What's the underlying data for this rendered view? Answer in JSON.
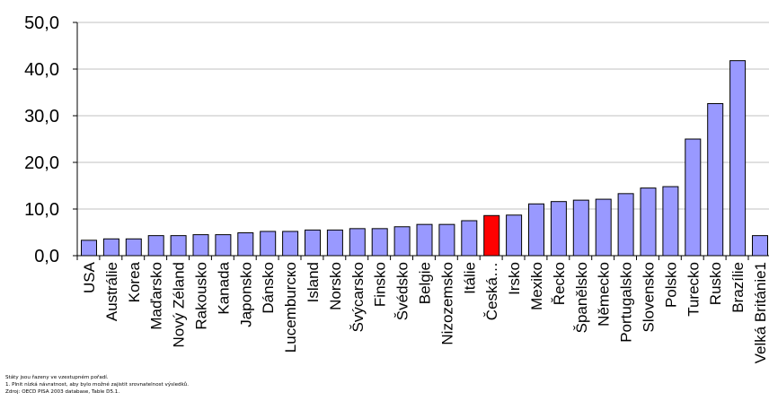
{
  "chart_data": {
    "type": "bar",
    "categories": [
      "USA",
      "Austrálie",
      "Korea",
      "Maďarsko",
      "Nový Zéland",
      "Rakousko",
      "Kanada",
      "Japonsko",
      "Dánsko",
      "Lucemburско",
      "Island",
      "Norsko",
      "Švýcarsko",
      "Finsko",
      "Švédsko",
      "Belgie",
      "Nizozemsko",
      "Itálie",
      "Česká…",
      "Irsko",
      "Mexiko",
      "Řecko",
      "Španělsko",
      "Německo",
      "Portugalsko",
      "Slovensko",
      "Polsko",
      "Turecko",
      "Rusko",
      "Brazílie",
      "Velká Británie1"
    ],
    "values": [
      3.3,
      3.6,
      3.6,
      4.3,
      4.3,
      4.5,
      4.5,
      4.9,
      5.2,
      5.2,
      5.5,
      5.5,
      5.8,
      5.8,
      6.2,
      6.7,
      6.7,
      7.5,
      8.6,
      8.7,
      11.1,
      11.6,
      11.9,
      12.1,
      13.3,
      14.5,
      14.8,
      25.0,
      32.6,
      41.8,
      4.3
    ],
    "highlight": "Česká…",
    "highlight_index": 18,
    "bar_color": "#9999ff",
    "highlight_color": "#ff0000",
    "ylim": [
      0,
      50
    ],
    "yticks": [
      "0,0",
      "10,0",
      "20,0",
      "30,0",
      "40,0",
      "50,0"
    ],
    "grid": true,
    "title": "",
    "xlabel": "",
    "ylabel": ""
  },
  "notes": [
    "Státy jsou řazeny ve vzestupném pořadí.",
    "1. Plnit nízká návratnost, aby bylo možné zajistit srovnatelnost výsledků.",
    "Zdroj: OECD PISA 2003 database, Table D5.1."
  ]
}
